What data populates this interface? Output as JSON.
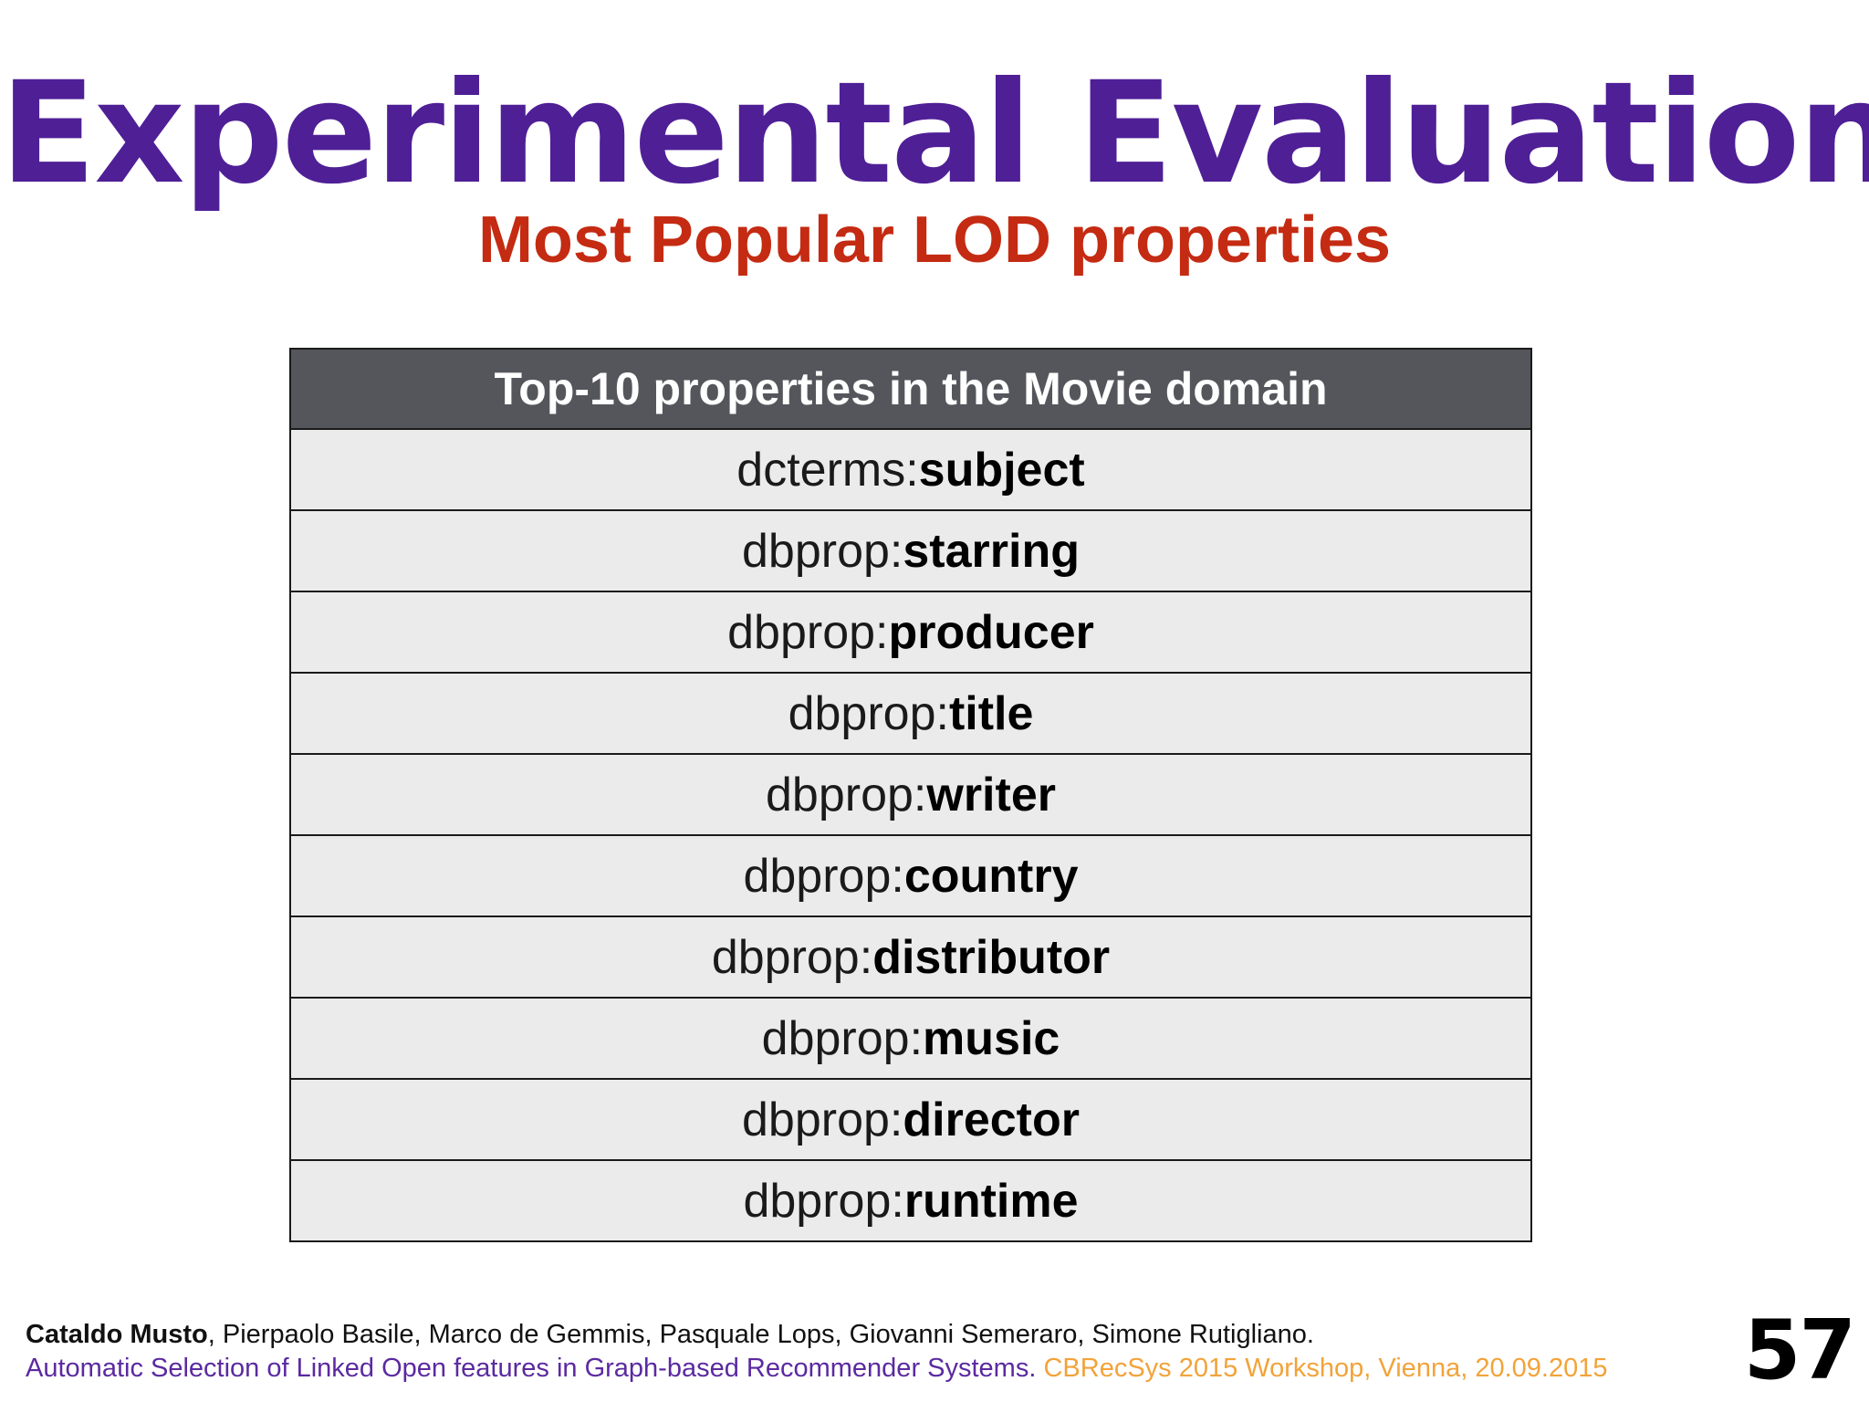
{
  "slide": {
    "title": "Experimental Evaluation",
    "subtitle": "Most Popular LOD properties",
    "page_number": "57"
  },
  "table": {
    "header": "Top-10 properties in the Movie domain",
    "rows": [
      {
        "prefix": "dcterms:",
        "name": "subject"
      },
      {
        "prefix": "dbprop:",
        "name": "starring"
      },
      {
        "prefix": "dbprop:",
        "name": "producer"
      },
      {
        "prefix": "dbprop:",
        "name": "title"
      },
      {
        "prefix": "dbprop:",
        "name": "writer"
      },
      {
        "prefix": "dbprop:",
        "name": "country"
      },
      {
        "prefix": "dbprop:",
        "name": "distributor"
      },
      {
        "prefix": "dbprop:",
        "name": "music"
      },
      {
        "prefix": "dbprop:",
        "name": "director"
      },
      {
        "prefix": "dbprop:",
        "name": "runtime"
      }
    ]
  },
  "footer": {
    "lead_author": "Cataldo Musto",
    "coauthors": ", Pierpaolo Basile, Marco de Gemmis, Pasquale Lops, Giovanni Semeraro, Simone Rutigliano.",
    "paper_title": "Automatic Selection of Linked Open features in Graph-based Recommender Systems.",
    "venue": " CBRecSys 2015 Workshop, Vienna, 20.09.2015"
  },
  "colors": {
    "title": "#4f1f96",
    "subtitle": "#c42b12",
    "table_header_bg": "#54565c",
    "table_row_bg": "#ecebeb",
    "paper_title": "#5b2aa0",
    "venue": "#f2a33a"
  }
}
